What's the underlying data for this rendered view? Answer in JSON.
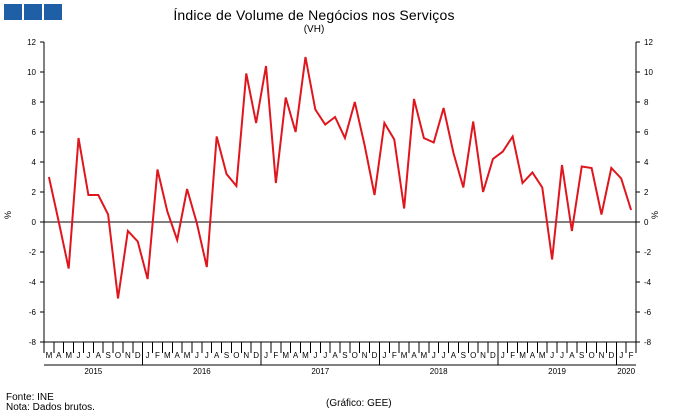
{
  "header": {
    "title": "Índice de Volume de Negócios nos Serviços",
    "subtitle": "(VH)",
    "logo_colors": [
      "#1f5fa6",
      "#1f5fa6",
      "#1f5fa6"
    ]
  },
  "footer": {
    "source": "Fonte: INE",
    "note": "Nota: Dados brutos.",
    "credit": "(Gráfico: GEE)"
  },
  "chart_data": {
    "type": "line",
    "title": "Índice de Volume de Negócios nos Serviços",
    "subtitle": "(VH)",
    "ylabel": "%",
    "ylim": [
      -8,
      12
    ],
    "yticks": [
      -8,
      -6,
      -4,
      -2,
      0,
      2,
      4,
      6,
      8,
      10,
      12
    ],
    "y_right_axis": true,
    "grid": false,
    "line_color": "#e0161e",
    "categories": [
      "M",
      "A",
      "M",
      "J",
      "J",
      "A",
      "S",
      "O",
      "N",
      "D",
      "J",
      "F",
      "M",
      "A",
      "M",
      "J",
      "J",
      "A",
      "S",
      "O",
      "N",
      "D",
      "J",
      "F",
      "M",
      "A",
      "M",
      "J",
      "J",
      "A",
      "S",
      "O",
      "N",
      "D",
      "J",
      "F",
      "M",
      "A",
      "M",
      "J",
      "J",
      "A",
      "S",
      "O",
      "N",
      "D",
      "J",
      "F",
      "M",
      "A",
      "M",
      "J",
      "J",
      "A",
      "S",
      "O",
      "N",
      "D",
      "J",
      "F"
    ],
    "years": [
      {
        "label": "2015",
        "start": 0,
        "end": 9
      },
      {
        "label": "2016",
        "start": 10,
        "end": 21
      },
      {
        "label": "2017",
        "start": 22,
        "end": 33
      },
      {
        "label": "2018",
        "start": 34,
        "end": 45
      },
      {
        "label": "2019",
        "start": 46,
        "end": 57
      },
      {
        "label": "2020",
        "start": 58,
        "end": 59
      }
    ],
    "series": [
      {
        "values": [
          3.0,
          0.0,
          -3.1,
          5.6,
          1.8,
          1.8,
          0.5,
          -5.1,
          -0.6,
          -1.3,
          -3.8,
          3.5,
          0.7,
          -1.2,
          2.2,
          -0.1,
          -3.0,
          5.7,
          3.2,
          2.4,
          9.9,
          6.6,
          10.4,
          2.6,
          8.3,
          6.0,
          11.0,
          7.5,
          6.5,
          7.0,
          5.6,
          8.0,
          5.1,
          1.8,
          6.6,
          5.5,
          0.9,
          8.2,
          5.6,
          5.3,
          7.6,
          4.6,
          2.3,
          6.7,
          2.0,
          4.2,
          4.7,
          5.7,
          2.6,
          3.3,
          2.3,
          -2.5,
          3.8,
          -0.6,
          3.7,
          3.6,
          0.5,
          3.6,
          2.9,
          0.8
        ]
      }
    ]
  }
}
